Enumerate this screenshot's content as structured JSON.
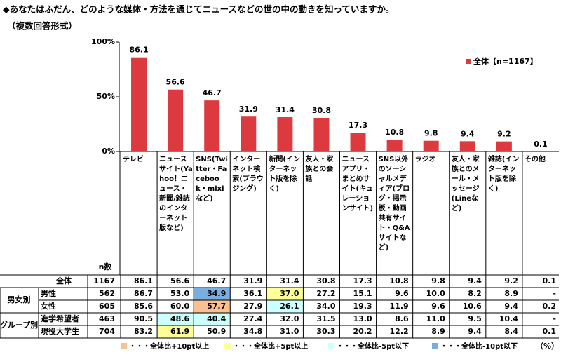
{
  "chart_data": {
    "type": "bar",
    "title": "◆あなたはふだん、どのような媒体・方法を通じてニュースなどの世の中の動きを知っていますか。",
    "subtitle": "（複数回答形式）",
    "categories": [
      "テレビ",
      "ニュースサイト(Yahoo！ニュース・新聞/雑誌のインターネット版など)",
      "SNS(Twitter・Facebook・mixiなど)",
      "インターネット検索(ブラウジング)",
      "新聞(インターネット版を除く)",
      "友人・家族との会話",
      "ニュースアプリ・まとめサイト(キュレーションサイト)",
      "SNS以外のソーシャルメディア(ブログ・掲示板・動画共有サイト・Q&Aサイトなど)",
      "ラジオ",
      "友人・家族とのメール・メッセージ(Lineなど)",
      "雑誌(インターネット版を除く)",
      "その他"
    ],
    "series": [
      {
        "name": "全体【n=1167】",
        "color": "#dc3a3f",
        "values": [
          86.1,
          56.6,
          46.7,
          31.9,
          31.4,
          30.8,
          17.3,
          10.8,
          9.8,
          9.4,
          9.2,
          0.1
        ]
      }
    ],
    "ylim": [
      0,
      100
    ],
    "yticks": [
      {
        "value": 0,
        "label": "0%"
      },
      {
        "value": 50,
        "label": "50%"
      },
      {
        "value": 100,
        "label": "100%"
      }
    ],
    "legend": "top-right"
  },
  "table": {
    "n_label": "n数",
    "total": {
      "label": "全体",
      "n": "1167",
      "cells": [
        "86.1",
        "56.6",
        "46.7",
        "31.9",
        "31.4",
        "30.8",
        "17.3",
        "10.8",
        "9.8",
        "9.4",
        "9.2",
        "0.1"
      ],
      "fills": [
        null,
        null,
        null,
        null,
        null,
        null,
        null,
        null,
        null,
        null,
        null,
        null
      ]
    },
    "groups": [
      {
        "label": "男女別",
        "rows": [
          {
            "label": "男性",
            "n": "562",
            "cells": [
              "86.7",
              "53.0",
              "34.9",
              "36.1",
              "37.0",
              "27.2",
              "15.1",
              "9.6",
              "10.0",
              "8.2",
              "8.9",
              "–"
            ],
            "fills": [
              null,
              null,
              "#79aee0",
              null,
              "#ffff99",
              null,
              null,
              null,
              null,
              null,
              null,
              null
            ]
          },
          {
            "label": "女性",
            "n": "605",
            "cells": [
              "85.6",
              "60.0",
              "57.7",
              "27.9",
              "26.1",
              "34.0",
              "19.3",
              "11.9",
              "9.6",
              "10.6",
              "9.4",
              "0.2"
            ],
            "fills": [
              null,
              null,
              "#fac090",
              null,
              "#ccffff",
              null,
              null,
              null,
              null,
              null,
              null,
              null
            ]
          }
        ]
      },
      {
        "label": "グループ別",
        "rows": [
          {
            "label": "進学希望者",
            "n": "463",
            "cells": [
              "90.5",
              "48.6",
              "40.4",
              "27.4",
              "32.0",
              "31.5",
              "13.0",
              "8.6",
              "11.0",
              "9.5",
              "10.4",
              "–"
            ],
            "fills": [
              null,
              "#ccffff",
              "#ccffff",
              null,
              null,
              null,
              null,
              null,
              null,
              null,
              null,
              null
            ]
          },
          {
            "label": "現役大学生",
            "n": "704",
            "cells": [
              "83.2",
              "61.9",
              "50.9",
              "34.8",
              "31.0",
              "30.3",
              "20.2",
              "12.2",
              "8.9",
              "9.4",
              "8.4",
              "0.1"
            ],
            "fills": [
              null,
              "#ffff99",
              null,
              null,
              null,
              null,
              null,
              null,
              null,
              null,
              null,
              null
            ]
          }
        ]
      }
    ],
    "legend": [
      {
        "label": "・・・全体比+10pt以上",
        "color": "#fac090"
      },
      {
        "label": "・・・全体比+5pt以上",
        "color": "#ffff99"
      },
      {
        "label": "・・・全体比-5pt以下",
        "color": "#ccffff"
      },
      {
        "label": "・・・全体比-10pt以下",
        "color": "#79aee0"
      }
    ],
    "unit": "（%）"
  }
}
